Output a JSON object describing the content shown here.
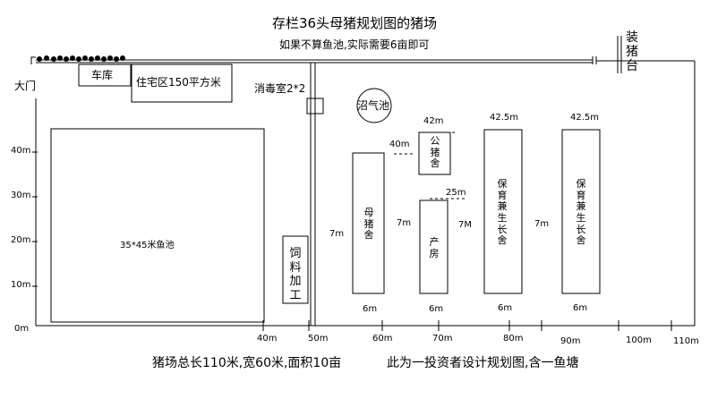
{
  "title": "存栏36头母猪规划图的猪场",
  "subtitle": "如果不算鱼池,实际需要6亩即可",
  "loading_platform": "装猪台",
  "gate": "大门",
  "garage": "车库",
  "residence": "住宅区150平方米",
  "disinfection": "消毒室2*2",
  "biogas": "沼气池",
  "fish_pond": "35*45米鱼池",
  "feed_processing": "饲料加工",
  "sow_house": "母猪舍",
  "boar_house": "公猪舍",
  "farrowing_house": "产房",
  "nursery_house_1": "保育兼生长舍",
  "nursery_house_2": "保育兼生长舍",
  "dimensions": {
    "boar_width": "42m",
    "nursery1_width": "42.5m",
    "nursery2_width": "42.5m",
    "boar_to_sow": "40m",
    "farrowing_length": "25m",
    "gap_feed_sow": "7m",
    "gap_sow_farrow": "7m",
    "gap_farrow_nursery": "7M",
    "gap_nursery": "7m",
    "sow_depth": "6m",
    "farrow_depth": "6m",
    "nursery1_depth": "6m",
    "nursery2_depth": "6m"
  },
  "y_axis": [
    "40m",
    "30m",
    "20m",
    "10m",
    "0m"
  ],
  "x_axis": [
    "40m",
    "50m",
    "60m",
    "70m",
    "80m",
    "90m",
    "100m",
    "110m"
  ],
  "footer_left": "猪场总长110米,宽60米,面积10亩",
  "footer_right": "此为一投资者设计规划图,含一鱼塘"
}
